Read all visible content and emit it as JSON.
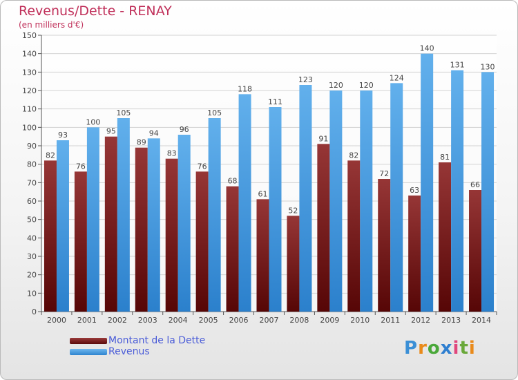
{
  "title": "Revenus/Dette - RENAY",
  "subtitle": "(en milliers d'€)",
  "legend": [
    {
      "label": "Montant de la Dette",
      "color": "#6b1414"
    },
    {
      "label": "Revenus",
      "color": "#3f9be3"
    }
  ],
  "logo": "Proxiti",
  "chart_data": {
    "type": "bar",
    "categories": [
      "2000",
      "2001",
      "2002",
      "2003",
      "2004",
      "2005",
      "2006",
      "2007",
      "2008",
      "2009",
      "2010",
      "2011",
      "2012",
      "2013",
      "2014"
    ],
    "series": [
      {
        "name": "Montant de la Dette",
        "color": "#6b1414",
        "values": [
          82,
          76,
          95,
          89,
          83,
          76,
          68,
          61,
          52,
          91,
          82,
          72,
          63,
          81,
          66
        ]
      },
      {
        "name": "Revenus",
        "color": "#3f9be3",
        "values": [
          93,
          100,
          105,
          94,
          96,
          105,
          118,
          111,
          123,
          120,
          120,
          124,
          140,
          131,
          130
        ]
      }
    ],
    "ylim": [
      0,
      150
    ],
    "yticks": [
      0,
      10,
      20,
      30,
      40,
      50,
      60,
      70,
      80,
      90,
      100,
      110,
      120,
      130,
      140,
      150
    ],
    "grid": true,
    "legend_position": "bottom-left"
  }
}
